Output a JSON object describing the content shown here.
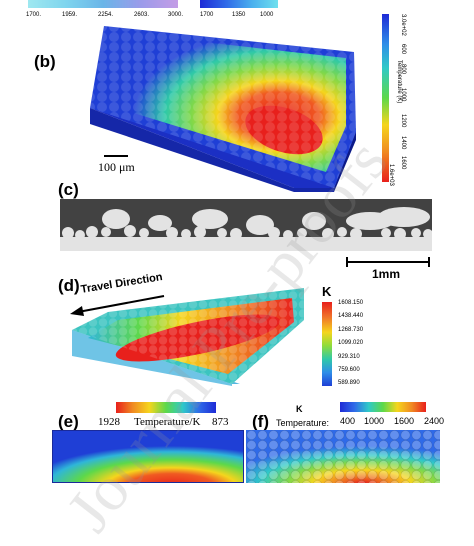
{
  "top_strip": {
    "left_ticks": [
      "1700.",
      "1959.",
      "2254.",
      "2603.",
      "3000."
    ],
    "right_ticks": [
      "1700",
      "1350",
      "1000"
    ]
  },
  "panel_b": {
    "label": "(b)",
    "scale_bar": "100 μm",
    "colorbar_title": "Temperature (K)",
    "colorbar_ticks": [
      "3.0e+02",
      "600",
      "800",
      "1000",
      "1200",
      "1400",
      "1600",
      "1.6e+03"
    ]
  },
  "panel_c": {
    "label": "(c)",
    "scale_bar": "1mm"
  },
  "panel_d": {
    "label": "(d)",
    "arrow_label": "Travel Direction",
    "colorbar_unit": "K",
    "colorbar_ticks": [
      "1608.150",
      "1438.440",
      "1268.730",
      "1099.020",
      "929.310",
      "759.600",
      "589.890"
    ]
  },
  "panel_e": {
    "label": "(e)",
    "cb_min": "1928",
    "cb_title": "Temperature/K",
    "cb_max": "873"
  },
  "panel_f": {
    "label": "(f)",
    "unit": "K",
    "cb_title": "Temperature:",
    "cb_ticks": [
      "400",
      "1000",
      "1600",
      "2400"
    ]
  },
  "watermark": "Journal Pre-proofs",
  "colors": {
    "hot": "#e8201c",
    "warm": "#f5d51d",
    "mid": "#2fc9a8",
    "cold": "#1f3fd6"
  }
}
